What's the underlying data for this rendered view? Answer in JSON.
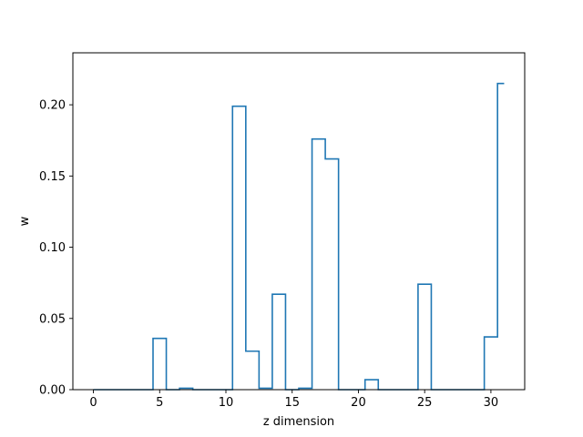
{
  "chart_data": {
    "type": "line",
    "style": "step",
    "xlabel": "z dimension",
    "ylabel": "w",
    "xlim": [
      -1.55,
      32.55
    ],
    "ylim": [
      0,
      0.2365
    ],
    "xticks": [
      0,
      5,
      10,
      15,
      20,
      25,
      30
    ],
    "yticks": [
      0.0,
      0.05,
      0.1,
      0.15,
      0.2
    ],
    "xtick_labels": [
      "0",
      "5",
      "10",
      "15",
      "20",
      "25",
      "30"
    ],
    "ytick_labels": [
      "0.00",
      "0.05",
      "0.10",
      "0.15",
      "0.20"
    ],
    "grid": false,
    "color": "#1f77b4",
    "series": [
      {
        "x": [
          0,
          1,
          2,
          3,
          4,
          5,
          6,
          7,
          8,
          9,
          10,
          11,
          12,
          13,
          14,
          15,
          16,
          17,
          18,
          19,
          20,
          21,
          22,
          23,
          24,
          25,
          26,
          27,
          28,
          29,
          30,
          31
        ],
        "values": [
          0.0,
          0.0,
          0.0,
          0.0,
          0.0,
          0.036,
          0.0,
          0.001,
          0.0,
          0.0,
          0.0,
          0.199,
          0.027,
          0.001,
          0.067,
          0.0,
          0.001,
          0.176,
          0.162,
          0.0,
          0.0,
          0.007,
          0.0,
          0.0,
          0.0,
          0.074,
          0.0,
          0.0,
          0.0,
          0.0,
          0.037,
          0.215
        ]
      }
    ]
  }
}
